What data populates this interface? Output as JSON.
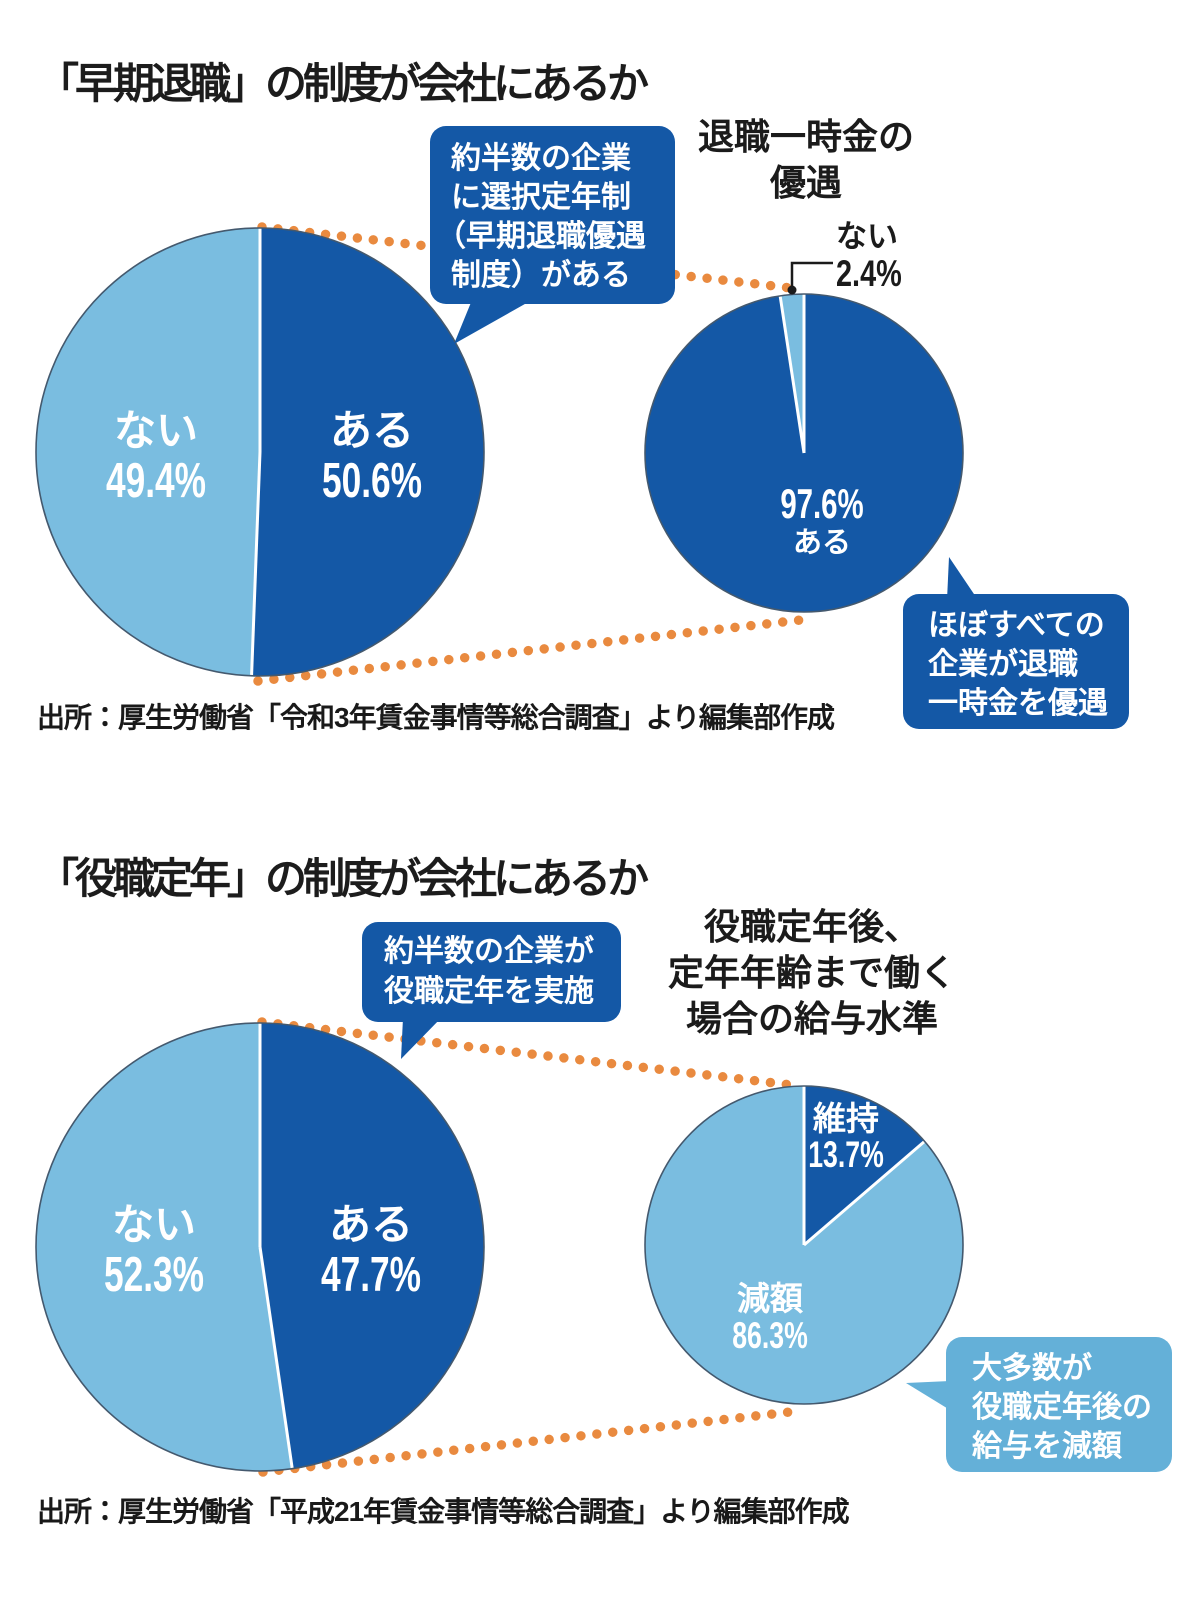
{
  "colors": {
    "dark_blue": "#1458a6",
    "light_blue": "#7abde0",
    "bubble_light_blue": "#64b0d8",
    "orange_dots": "#e98a3f",
    "pie_outline": "#44596e",
    "text_black": "#1b1b1b"
  },
  "sections": [
    {
      "id": "early-retirement",
      "title": "「早期退職」の制度が会社にあるか",
      "source": "出所：厚生労働省「令和3年賃金事情等総合調査」より編集部作成",
      "main_bubble_lines": [
        "約半数の企業",
        "に選択定年制",
        "（早期退職優遇",
        "制度）がある"
      ],
      "sub_bubble_lines": [
        "ほぼすべての",
        "企業が退職",
        "一時金を優遇"
      ]
    },
    {
      "id": "managerial-retirement",
      "title": "「役職定年」の制度が会社にあるか",
      "source": "出所：厚生労働省「平成21年賃金事情等総合調査」より編集部作成",
      "main_bubble_lines": [
        "約半数の企業が",
        "役職定年を実施"
      ],
      "sub_bubble_lines": [
        "大多数が",
        "役職定年後の",
        "給与を減額"
      ]
    }
  ],
  "chart_data": [
    {
      "type": "pie",
      "title": "「早期退職」の制度が会社にあるか",
      "categories": [
        "ある",
        "ない"
      ],
      "values": [
        50.6,
        49.4
      ],
      "slices": [
        {
          "label": "ある",
          "value": 50.6,
          "pct_label": "50.6%",
          "color": "#1458a6"
        },
        {
          "label": "ない",
          "value": 49.4,
          "pct_label": "49.4%",
          "color": "#7abde0"
        }
      ]
    },
    {
      "type": "pie",
      "title": "退職一時金の優遇",
      "title_display": "退職一時金の\n優遇",
      "categories": [
        "ある",
        "ない"
      ],
      "values": [
        97.6,
        2.4
      ],
      "slices": [
        {
          "label": "ある",
          "value": 97.6,
          "pct_label": "97.6%",
          "color": "#1458a6"
        },
        {
          "label": "ない",
          "value": 2.4,
          "pct_label": "2.4%",
          "color": "#7abde0"
        }
      ]
    },
    {
      "type": "pie",
      "title": "「役職定年」の制度が会社にあるか",
      "categories": [
        "ある",
        "ない"
      ],
      "values": [
        47.7,
        52.3
      ],
      "slices": [
        {
          "label": "ある",
          "value": 47.7,
          "pct_label": "47.7%",
          "color": "#1458a6"
        },
        {
          "label": "ない",
          "value": 52.3,
          "pct_label": "52.3%",
          "color": "#7abde0"
        }
      ]
    },
    {
      "type": "pie",
      "title": "役職定年後、定年年齢まで働く場合の給与水準",
      "title_display": "役職定年後、\n定年年齢まで働く\n場合の給与水準",
      "categories": [
        "維持",
        "減額"
      ],
      "values": [
        13.7,
        86.3
      ],
      "slices": [
        {
          "label": "維持",
          "value": 13.7,
          "pct_label": "13.7%",
          "color": "#1458a6"
        },
        {
          "label": "減額",
          "value": 86.3,
          "pct_label": "86.3%",
          "color": "#7abde0"
        }
      ]
    }
  ]
}
